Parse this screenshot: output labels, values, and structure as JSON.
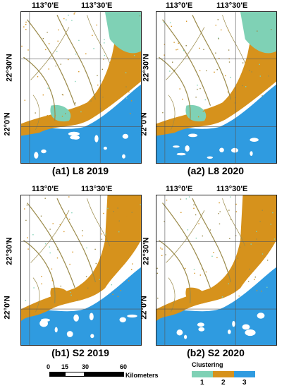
{
  "colors": {
    "class1": "#7fd1b5",
    "class2": "#d6921c",
    "class3": "#2f9be0",
    "land": "#ffffff",
    "river": "#9a8a4a",
    "grid": "#555555"
  },
  "coords": {
    "lon1": "113°0'E",
    "lon2": "113°30'E",
    "lat1": "22°30'N",
    "lat2": "22°0'N"
  },
  "panels": [
    {
      "id": "a1",
      "caption": "(a1) L8 2019"
    },
    {
      "id": "a2",
      "caption": "(a2) L8 2020"
    },
    {
      "id": "b1",
      "caption": "(b1) S2 2019"
    },
    {
      "id": "b2",
      "caption": "(b2) S2 2020"
    }
  ],
  "scalebar": {
    "ticks": [
      "0",
      "15",
      "30",
      "60"
    ],
    "unit": "Kilometers"
  },
  "legend": {
    "title": "Clustering",
    "items": [
      {
        "label": "1",
        "color": "#7fd1b5"
      },
      {
        "label": "2",
        "color": "#d6921c"
      },
      {
        "label": "3",
        "color": "#2f9be0"
      }
    ]
  }
}
